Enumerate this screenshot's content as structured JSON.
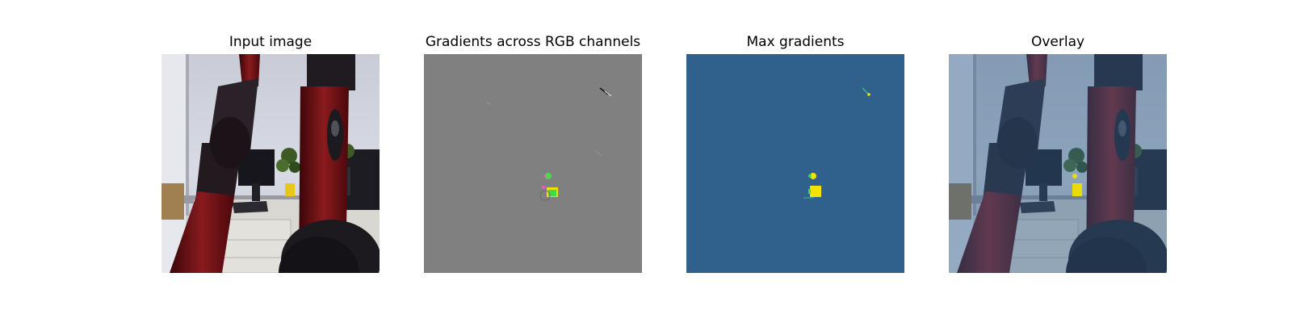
{
  "panels": [
    {
      "title": "Input image",
      "icon": "robot-arms-photo"
    },
    {
      "title": "Gradients across RGB channels",
      "icon": "gradient-map"
    },
    {
      "title": "Max gradients",
      "icon": "max-gradient-map"
    },
    {
      "title": "Overlay",
      "icon": "overlay-image"
    }
  ],
  "colors": {
    "gradient_bg": "#808080",
    "max_gradient_bg": "#30608c",
    "highlight_yellow": "#f4e300",
    "highlight_green": "#4cd94c",
    "robot_red": "#7a1414"
  }
}
